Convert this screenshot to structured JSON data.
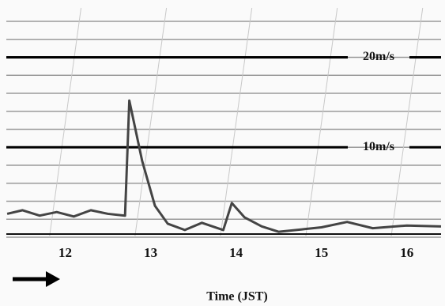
{
  "chart_data": {
    "type": "line",
    "x_label": "Time (JST)",
    "x": [
      11.32,
      11.5,
      11.7,
      11.9,
      12.1,
      12.3,
      12.5,
      12.7,
      12.75,
      12.9,
      13.05,
      13.2,
      13.4,
      13.6,
      13.85,
      13.95,
      14.1,
      14.3,
      14.5,
      14.8,
      15.0,
      15.3,
      15.6,
      16.0,
      16.4
    ],
    "series": [
      {
        "color": "#444444",
        "values": [
          2.6,
          3.0,
          2.4,
          2.8,
          2.3,
          3.0,
          2.6,
          2.4,
          15.2,
          8.5,
          3.5,
          1.5,
          0.8,
          1.6,
          0.8,
          3.8,
          2.2,
          1.2,
          0.6,
          0.9,
          1.1,
          1.7,
          1.0,
          1.3,
          1.2
        ]
      }
    ],
    "xlim": [
      11.31,
      16.4
    ],
    "xticks": [
      12,
      13,
      14,
      15,
      16
    ],
    "ylim": [
      0,
      25.5
    ],
    "yticks": [
      0,
      2,
      4,
      6,
      8,
      10,
      12,
      14,
      16,
      18,
      20,
      22,
      24
    ],
    "show_ytick_labels": false,
    "grid": true,
    "reference_lines": [
      {
        "value": 20,
        "label": "20m/s"
      },
      {
        "value": 10,
        "label": "10m/s"
      }
    ]
  }
}
